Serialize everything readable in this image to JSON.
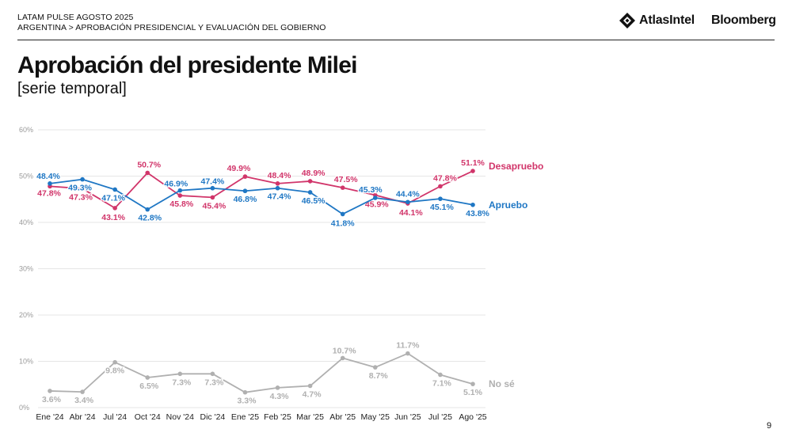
{
  "header": {
    "kicker_line1": "LATAM PULSE AGOSTO 2025",
    "kicker_line2": "ARGENTINA > APROBACIÓN PRESIDENCIAL Y EVALUACIÓN DEL GOBIERNO",
    "logo_atlas": "AtlasIntel",
    "logo_bloomberg": "Bloomberg"
  },
  "page_number": "9",
  "colors": {
    "desaprueba": "#d1356a",
    "aprueba": "#1f77c4",
    "nose": "#b0b0b0"
  },
  "chart_data": {
    "type": "line",
    "title": "Aprobación del presidente Milei",
    "subtitle": "[serie temporal]",
    "xlabel": "",
    "ylabel": "",
    "ylim": [
      0,
      60
    ],
    "yticks": [
      "0%",
      "10%",
      "20%",
      "30%",
      "40%",
      "50%",
      "60%"
    ],
    "grid": true,
    "categories": [
      "Ene '24",
      "Abr '24",
      "Jul '24",
      "Oct '24",
      "Nov '24",
      "Dic '24",
      "Ene '25",
      "Feb '25",
      "Mar '25",
      "Abr '25",
      "May '25",
      "Jun '25",
      "Jul '25",
      "Ago '25"
    ],
    "series": [
      {
        "name": "Desapruebo",
        "color": "#d1356a",
        "values": [
          47.8,
          47.3,
          43.1,
          50.7,
          45.8,
          45.4,
          49.9,
          48.4,
          48.9,
          47.5,
          45.9,
          44.1,
          47.8,
          51.1
        ],
        "labels": [
          "47.8%",
          "47.3%",
          "43.1%",
          "50.7%",
          "45.8%",
          "45.4%",
          "49.9%",
          "48.4%",
          "48.9%",
          "47.5%",
          "45.9%",
          "44.1%",
          "47.8%",
          "51.1%"
        ]
      },
      {
        "name": "Apruebo",
        "color": "#1f77c4",
        "values": [
          48.4,
          49.3,
          47.1,
          42.8,
          46.9,
          47.4,
          46.8,
          47.4,
          46.5,
          41.8,
          45.3,
          44.4,
          45.1,
          43.8
        ],
        "labels": [
          "48.4%",
          "49.3%",
          "47.1%",
          "42.8%",
          "46.9%",
          "47.4%",
          "46.8%",
          "47.4%",
          "46.5%",
          "41.8%",
          "45.3%",
          "44.4%",
          "45.1%",
          "43.8%"
        ]
      },
      {
        "name": "No sé",
        "color": "#b0b0b0",
        "values": [
          3.6,
          3.4,
          9.8,
          6.5,
          7.3,
          7.3,
          3.3,
          4.3,
          4.7,
          10.7,
          8.7,
          11.7,
          7.1,
          5.1
        ],
        "labels": [
          "3.6%",
          "3.4%",
          "9.8%",
          "6.5%",
          "7.3%",
          "7.3%",
          "3.3%",
          "4.3%",
          "4.7%",
          "10.7%",
          "8.7%",
          "11.7%",
          "7.1%",
          "5.1%"
        ]
      }
    ]
  }
}
